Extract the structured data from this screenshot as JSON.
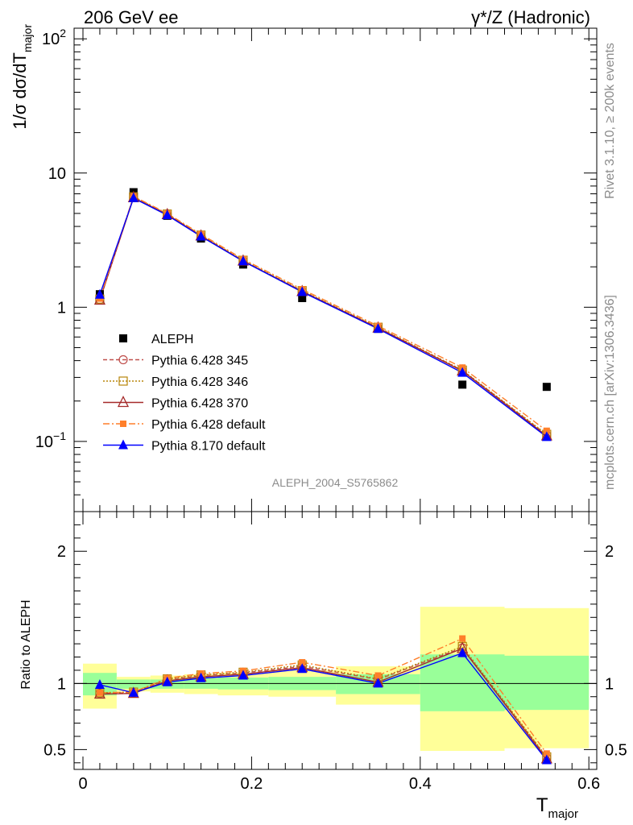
{
  "header": {
    "left": "206 GeV ee",
    "right": "γ*/Z (Hadronic)"
  },
  "side_text": {
    "rivet": "Rivet 3.1.10, ≥ 200k events",
    "mcplots": "mcplots.cern.ch [arXiv:1306.3436]"
  },
  "analysis_label": "ALEPH_2004_S5765862",
  "chart_data": [
    {
      "type": "line",
      "panel": "main",
      "ylabel": "1/σ  dσ/dT_major",
      "yscale": "log",
      "ylim": [
        0.03,
        120
      ],
      "xlim": [
        -0.02,
        0.6
      ],
      "ytick_labels": [
        "10^-1",
        "1",
        "10",
        "10^2"
      ],
      "legend_position": "lower-left",
      "x": [
        0.02,
        0.06,
        0.1,
        0.14,
        0.19,
        0.26,
        0.35,
        0.45,
        0.55
      ],
      "series": [
        {
          "name": "ALEPH",
          "color": "#000000",
          "style": "data",
          "values": [
            1.25,
            7.2,
            4.8,
            3.25,
            2.08,
            1.17,
            0.69,
            0.265,
            0.255
          ]
        },
        {
          "name": "Pythia 6.428 345",
          "color": "#c0504d",
          "style": "dashed-circle",
          "values": [
            1.14,
            6.6,
            4.92,
            3.42,
            2.22,
            1.32,
            0.705,
            0.338,
            0.112
          ]
        },
        {
          "name": "Pythia 6.428 346",
          "color": "#b8860b",
          "style": "dotted-square",
          "values": [
            1.15,
            6.65,
            4.95,
            3.45,
            2.24,
            1.33,
            0.71,
            0.34,
            0.113
          ]
        },
        {
          "name": "Pythia 6.428 370",
          "color": "#a52a2a",
          "style": "solid-triangle-open",
          "values": [
            1.13,
            6.55,
            4.9,
            3.4,
            2.21,
            1.31,
            0.7,
            0.335,
            0.11
          ]
        },
        {
          "name": "Pythia 6.428 default",
          "color": "#ff7f2a",
          "style": "dashdot-square-filled",
          "values": [
            1.16,
            6.7,
            5.0,
            3.5,
            2.28,
            1.36,
            0.725,
            0.355,
            0.12
          ]
        },
        {
          "name": "Pythia 8.170 default",
          "color": "#0000ff",
          "style": "solid-triangle-filled",
          "values": [
            1.24,
            6.5,
            4.85,
            3.37,
            2.2,
            1.3,
            0.69,
            0.325,
            0.108
          ]
        }
      ]
    },
    {
      "type": "line",
      "panel": "ratio",
      "ylabel": "Ratio to ALEPH",
      "xlabel": "T_major",
      "ylim": [
        0.35,
        2.3
      ],
      "xlim": [
        -0.02,
        0.6
      ],
      "ytick_labels": [
        "0.5",
        "1",
        "2"
      ],
      "xtick_labels": [
        "0",
        "0.2",
        "0.4",
        "0.6"
      ],
      "reference_line": 1,
      "bins": [
        {
          "xlo": 0.0,
          "xhi": 0.04,
          "yellow": [
            0.81,
            1.15
          ],
          "green": [
            0.91,
            1.08
          ]
        },
        {
          "xlo": 0.04,
          "xhi": 0.08,
          "yellow": [
            0.94,
            1.05
          ],
          "green": [
            0.96,
            1.03
          ]
        },
        {
          "xlo": 0.08,
          "xhi": 0.12,
          "yellow": [
            0.93,
            1.06
          ],
          "green": [
            0.96,
            1.03
          ]
        },
        {
          "xlo": 0.12,
          "xhi": 0.16,
          "yellow": [
            0.92,
            1.07
          ],
          "green": [
            0.96,
            1.04
          ]
        },
        {
          "xlo": 0.16,
          "xhi": 0.22,
          "yellow": [
            0.91,
            1.08
          ],
          "green": [
            0.955,
            1.045
          ]
        },
        {
          "xlo": 0.22,
          "xhi": 0.3,
          "yellow": [
            0.9,
            1.1
          ],
          "green": [
            0.95,
            1.05
          ]
        },
        {
          "xlo": 0.3,
          "xhi": 0.4,
          "yellow": [
            0.84,
            1.13
          ],
          "green": [
            0.92,
            1.07
          ]
        },
        {
          "xlo": 0.4,
          "xhi": 0.5,
          "yellow": [
            0.49,
            1.58
          ],
          "green": [
            0.79,
            1.22
          ]
        },
        {
          "xlo": 0.5,
          "xhi": 0.6,
          "yellow": [
            0.51,
            1.57
          ],
          "green": [
            0.8,
            1.21
          ]
        }
      ],
      "series": [
        {
          "name": "Pythia 6.428 345",
          "color": "#c0504d",
          "values": [
            0.925,
            0.93,
            1.03,
            1.06,
            1.08,
            1.13,
            1.03,
            1.27,
            0.44
          ]
        },
        {
          "name": "Pythia 6.428 346",
          "color": "#b8860b",
          "values": [
            0.93,
            0.935,
            1.035,
            1.065,
            1.085,
            1.14,
            1.035,
            1.28,
            0.445
          ]
        },
        {
          "name": "Pythia 6.428 370",
          "color": "#a52a2a",
          "values": [
            0.92,
            0.925,
            1.02,
            1.05,
            1.07,
            1.12,
            1.01,
            1.265,
            0.43
          ]
        },
        {
          "name": "Pythia 6.428 default",
          "color": "#ff7f2a",
          "values": [
            0.93,
            0.935,
            1.04,
            1.075,
            1.095,
            1.16,
            1.06,
            1.34,
            0.47
          ]
        },
        {
          "name": "Pythia 8.170 default",
          "color": "#0000ff",
          "values": [
            0.99,
            0.93,
            1.01,
            1.04,
            1.06,
            1.11,
            1.0,
            1.23,
            0.42
          ]
        }
      ]
    }
  ]
}
